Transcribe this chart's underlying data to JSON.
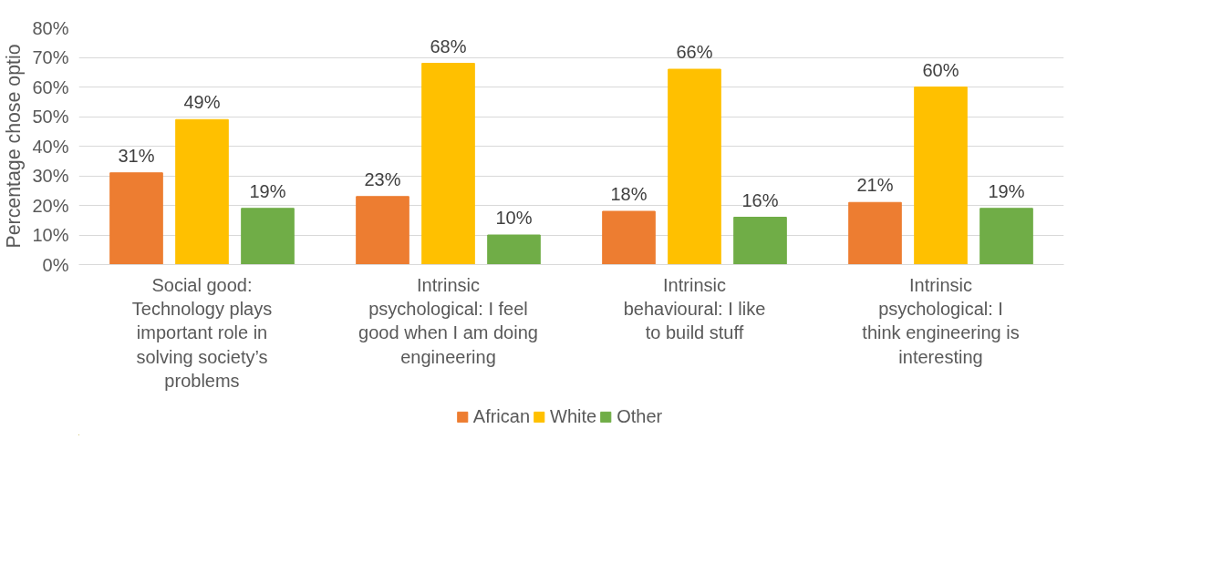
{
  "chart_data": {
    "type": "bar",
    "ylabel": "Percentage chose optio",
    "categories": [
      "Social good: Technology plays important role in solving society’s problems",
      "Intrinsic psychological: I feel good when I am doing engineering",
      "Intrinsic behavioural: I like to build stuff",
      "Intrinsic psychological: I think engineering is interesting"
    ],
    "series": [
      {
        "name": "African",
        "color": "#ed7d31",
        "values": [
          31,
          23,
          18,
          21
        ],
        "value_labels": [
          "31%",
          "23%",
          "18%",
          "21%"
        ]
      },
      {
        "name": "White",
        "color": "#ffc000",
        "values": [
          49,
          68,
          66,
          60
        ],
        "value_labels": [
          "49%",
          "68%",
          "66%",
          "60%"
        ]
      },
      {
        "name": "Other",
        "color": "#70ad47",
        "values": [
          19,
          10,
          16,
          19
        ],
        "value_labels": [
          "19%",
          "10%",
          "16%",
          "19%"
        ]
      }
    ],
    "ylim": [
      0,
      80
    ],
    "yticks": [
      {
        "value": 0,
        "label": "0%"
      },
      {
        "value": 10,
        "label": "10%"
      },
      {
        "value": 20,
        "label": "20%"
      },
      {
        "value": 30,
        "label": "30%"
      },
      {
        "value": 40,
        "label": "40%"
      },
      {
        "value": 50,
        "label": "50%"
      },
      {
        "value": 60,
        "label": "60%"
      },
      {
        "value": 70,
        "label": "70%"
      },
      {
        "value": 80,
        "label": "80%"
      }
    ],
    "grid": "y",
    "legend": "bottom"
  }
}
